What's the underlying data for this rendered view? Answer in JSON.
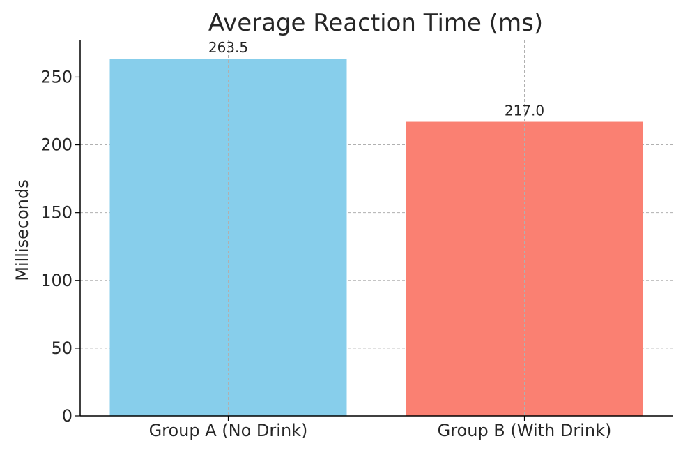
{
  "chart_data": {
    "type": "bar",
    "title": "Average Reaction Time (ms)",
    "xlabel": "",
    "ylabel": "Milliseconds",
    "categories": [
      "Group A (No Drink)",
      "Group B (With Drink)"
    ],
    "values": [
      263.5,
      217.0
    ],
    "value_labels": [
      "263.5",
      "217.0"
    ],
    "colors": [
      "#87CEEB",
      "#FA8072"
    ],
    "ylim": [
      0,
      277
    ],
    "yticks": [
      0,
      50,
      100,
      150,
      200,
      250
    ],
    "ytick_labels": [
      "0",
      "50",
      "100",
      "150",
      "200",
      "250"
    ],
    "grid": true,
    "legend": "none"
  }
}
